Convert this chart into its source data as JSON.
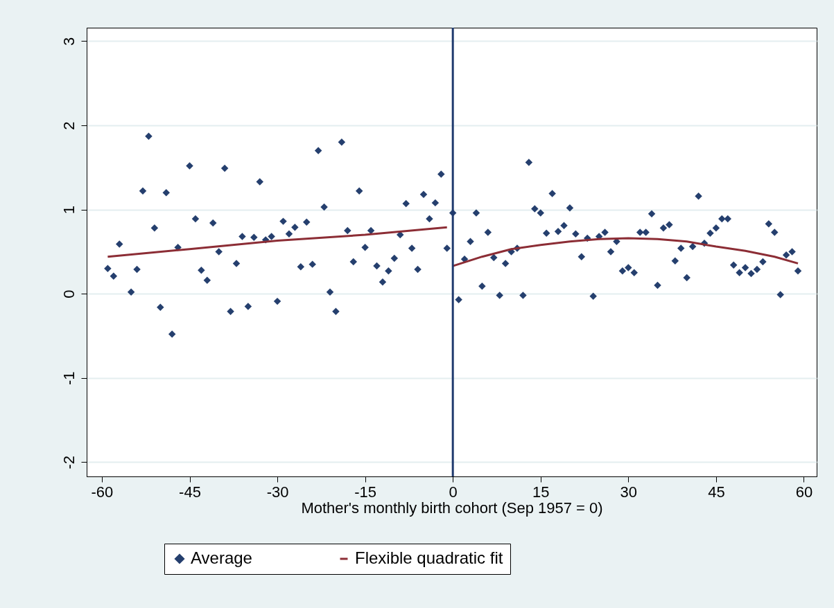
{
  "chart_data": {
    "type": "scatter",
    "xlabel": "Mother's monthly birth cohort (Sep 1957 = 0)",
    "xlim": [
      -62.6,
      62.2
    ],
    "xticks": [
      -60,
      -45,
      -30,
      -15,
      0,
      15,
      30,
      45,
      60
    ],
    "ylim": [
      -2.17,
      3.16
    ],
    "yticks": [
      -2,
      -1,
      0,
      1,
      2,
      3
    ],
    "grid": "y",
    "legend": "bottom",
    "series": [
      {
        "name": "Average",
        "color": "#253f6e",
        "marker": "diamond",
        "x": [
          -59,
          -58,
          -57,
          -55,
          -54,
          -53,
          -52,
          -51,
          -50,
          -49,
          -48,
          -47,
          -45,
          -44,
          -43,
          -42,
          -41,
          -40,
          -39,
          -38,
          -37,
          -36,
          -35,
          -34,
          -33,
          -32,
          -31,
          -30,
          -29,
          -28,
          -27,
          -26,
          -25,
          -24,
          -23,
          -22,
          -21,
          -20,
          -19,
          -18,
          -17,
          -16,
          -15,
          -14,
          -13,
          -12,
          -11,
          -10,
          -9,
          -8,
          -7,
          -6,
          -5,
          -4,
          -3,
          -2,
          -1,
          0,
          1,
          2,
          3,
          4,
          5,
          6,
          7,
          8,
          9,
          10,
          11,
          12,
          13,
          14,
          15,
          16,
          17,
          18,
          19,
          20,
          21,
          22,
          23,
          24,
          25,
          26,
          27,
          28,
          29,
          30,
          31,
          32,
          33,
          34,
          35,
          36,
          37,
          38,
          39,
          40,
          41,
          42,
          43,
          44,
          45,
          46,
          47,
          48,
          49,
          50,
          51,
          52,
          53,
          54,
          55,
          56,
          57,
          58,
          59
        ],
        "values": [
          0.3,
          0.21,
          0.59,
          0.02,
          0.29,
          1.22,
          1.87,
          0.78,
          -0.16,
          1.2,
          -0.48,
          0.55,
          1.52,
          0.89,
          0.28,
          0.16,
          0.84,
          0.5,
          1.49,
          -0.21,
          0.36,
          0.68,
          -0.15,
          0.67,
          1.33,
          0.64,
          0.68,
          -0.09,
          0.86,
          0.71,
          0.79,
          0.32,
          0.85,
          0.35,
          1.7,
          1.03,
          0.02,
          -0.21,
          1.8,
          0.75,
          0.38,
          1.22,
          0.55,
          0.75,
          0.33,
          0.14,
          0.27,
          0.42,
          0.7,
          1.07,
          0.54,
          0.29,
          1.18,
          0.89,
          1.08,
          1.42,
          0.54,
          0.96,
          -0.07,
          0.41,
          0.62,
          0.96,
          0.09,
          0.73,
          0.43,
          -0.02,
          0.36,
          0.5,
          0.54,
          -0.02,
          1.56,
          1.01,
          0.96,
          0.72,
          1.19,
          0.74,
          0.81,
          1.02,
          0.71,
          0.44,
          0.66,
          -0.03,
          0.68,
          0.73,
          0.5,
          0.62,
          0.27,
          0.31,
          0.25,
          0.73,
          0.73,
          0.95,
          0.1,
          0.78,
          0.82,
          0.39,
          0.54,
          0.19,
          0.56,
          1.16,
          0.6,
          0.72,
          0.78,
          0.89,
          0.89,
          0.34,
          0.25,
          0.31,
          0.24,
          0.29,
          0.38,
          0.83,
          0.73,
          -0.01,
          0.46,
          0.5,
          0.27
        ]
      },
      {
        "name": "Flexible quadratic fit",
        "color": "#8c2d35",
        "type": "line",
        "line_style": "solid",
        "marker": "none",
        "x": [
          -59,
          -45,
          -30,
          -15,
          -1
        ],
        "values": [
          0.44,
          0.53,
          0.63,
          0.7,
          0.79
        ]
      },
      {
        "color": "#8c2d35",
        "type": "line",
        "line_style": "solid",
        "marker": "none",
        "x": [
          0,
          5,
          10,
          15,
          20,
          25,
          30,
          35,
          40,
          45,
          50,
          55,
          59
        ],
        "values": [
          0.33,
          0.44,
          0.53,
          0.58,
          0.62,
          0.65,
          0.66,
          0.65,
          0.62,
          0.56,
          0.51,
          0.44,
          0.36
        ]
      }
    ],
    "ref_lines": [
      {
        "axis": "x",
        "value": 0,
        "color": "#1f3a6e"
      }
    ]
  }
}
